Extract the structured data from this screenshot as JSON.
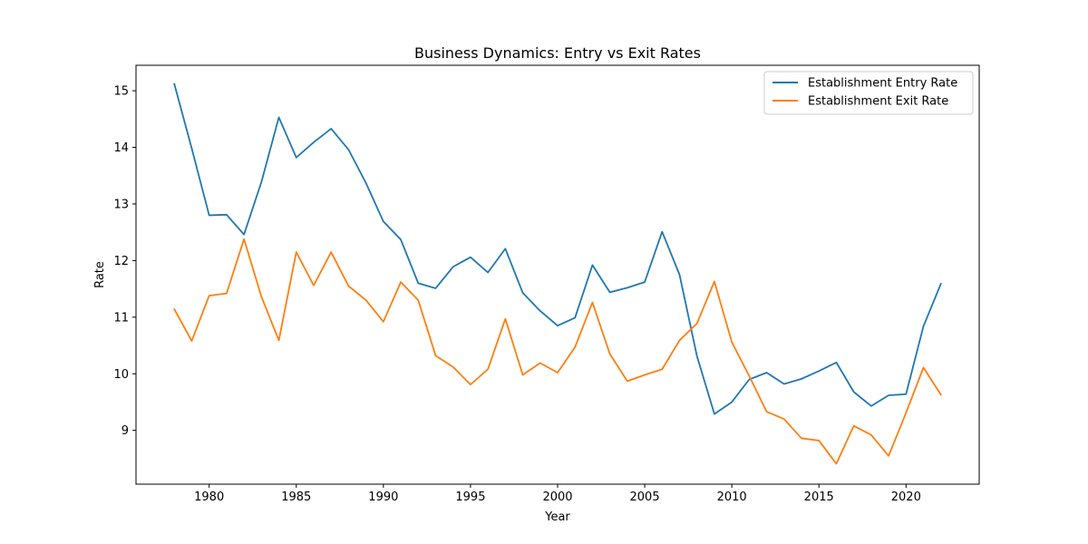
{
  "chart_data": {
    "type": "line",
    "title": "Business Dynamics: Entry vs Exit Rates",
    "xlabel": "Year",
    "ylabel": "Rate",
    "xlim": [
      1975.8,
      2024.2
    ],
    "ylim": [
      8.05,
      15.45
    ],
    "xticks": [
      1980,
      1985,
      1990,
      1995,
      2000,
      2005,
      2010,
      2015,
      2020
    ],
    "yticks": [
      9,
      10,
      11,
      12,
      13,
      14,
      15
    ],
    "grid": false,
    "legend_position": "top-right",
    "x": [
      1978,
      1979,
      1980,
      1981,
      1982,
      1983,
      1984,
      1985,
      1986,
      1987,
      1988,
      1989,
      1990,
      1991,
      1992,
      1993,
      1994,
      1995,
      1996,
      1997,
      1998,
      1999,
      2000,
      2001,
      2002,
      2003,
      2004,
      2005,
      2006,
      2007,
      2008,
      2009,
      2010,
      2011,
      2012,
      2013,
      2014,
      2015,
      2016,
      2017,
      2018,
      2019,
      2020,
      2021,
      2022
    ],
    "series": [
      {
        "name": "Establishment Entry Rate",
        "color": "#1f77b4",
        "values": [
          15.12,
          13.98,
          12.8,
          12.81,
          12.46,
          13.39,
          14.53,
          13.82,
          14.09,
          14.33,
          13.96,
          13.37,
          12.69,
          12.37,
          11.6,
          11.51,
          11.89,
          12.06,
          11.79,
          12.21,
          11.43,
          11.11,
          10.85,
          10.99,
          11.92,
          11.44,
          11.52,
          11.62,
          12.51,
          11.75,
          10.31,
          9.29,
          9.5,
          9.9,
          10.02,
          9.82,
          9.91,
          10.05,
          10.2,
          9.68,
          9.43,
          9.62,
          9.64,
          10.84,
          11.59
        ]
      },
      {
        "name": "Establishment Exit Rate",
        "color": "#ff7f0e",
        "values": [
          11.14,
          10.58,
          11.38,
          11.42,
          12.38,
          11.36,
          10.59,
          12.15,
          11.56,
          12.15,
          11.55,
          11.3,
          10.92,
          11.62,
          11.3,
          10.32,
          10.12,
          9.81,
          10.08,
          10.97,
          9.98,
          10.19,
          10.02,
          10.47,
          11.26,
          10.35,
          9.87,
          9.98,
          10.08,
          10.59,
          10.89,
          11.63,
          10.56,
          9.96,
          9.33,
          9.2,
          8.86,
          8.82,
          8.41,
          9.08,
          8.92,
          8.55,
          9.31,
          10.11,
          9.63
        ]
      }
    ]
  }
}
